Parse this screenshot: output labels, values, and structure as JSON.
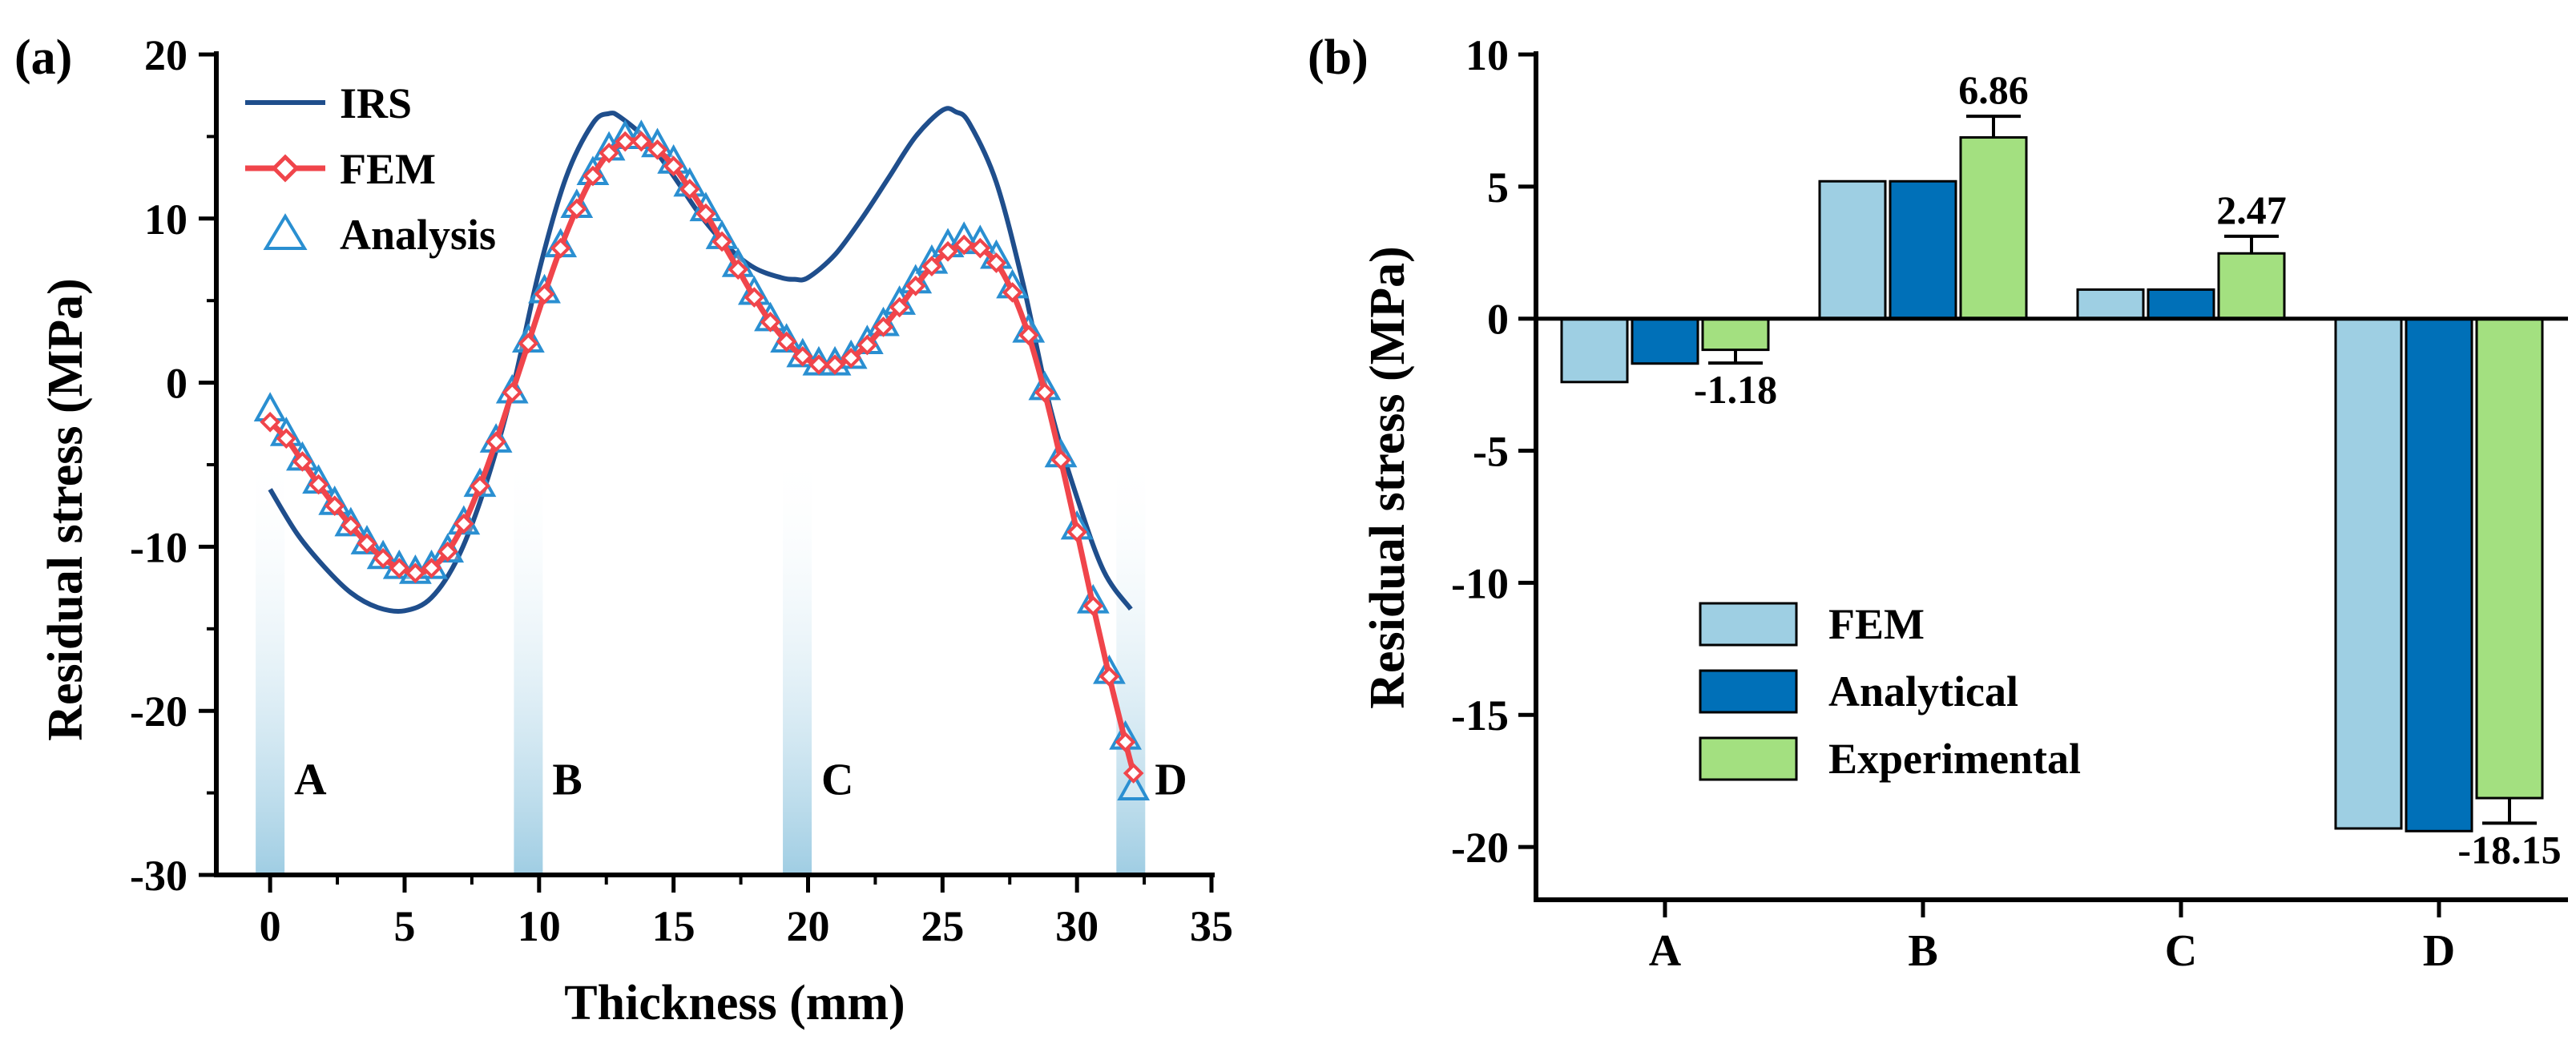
{
  "chart_data": [
    {
      "panel_label": "(a)",
      "type": "line",
      "xlabel": "Thickness (mm)",
      "ylabel": "Residual stress (MPa)",
      "xlim": [
        -2,
        35
      ],
      "ylim": [
        -30,
        20
      ],
      "xticks": [
        0,
        5,
        10,
        15,
        20,
        25,
        30,
        35
      ],
      "yticks": [
        -30,
        -20,
        -10,
        0,
        10,
        20
      ],
      "legend": {
        "placement": "top-left",
        "entries": [
          "IRS",
          "FEM",
          "Analysis"
        ]
      },
      "colors": {
        "IRS": "#1f4e8c",
        "FEM": "#f0454b",
        "Analysis": "#2a8fd1",
        "band": "#9fcde3"
      },
      "regions": [
        {
          "label": "A",
          "x": 0
        },
        {
          "label": "B",
          "x": 9.6
        },
        {
          "label": "C",
          "x": 19.6
        },
        {
          "label": "D",
          "x": 32
        }
      ],
      "series": [
        {
          "name": "IRS",
          "x": [
            0,
            1,
            2,
            3,
            4,
            5,
            6,
            7,
            8,
            9,
            10,
            11,
            12,
            12.6,
            13,
            14,
            15,
            16,
            17,
            18,
            19,
            19.5,
            20,
            21,
            22,
            23,
            24,
            25,
            25.5,
            26,
            27,
            28,
            29,
            30,
            31,
            32
          ],
          "y": [
            -6.5,
            -9.2,
            -11.2,
            -12.8,
            -13.7,
            -13.9,
            -13.1,
            -10.6,
            -6.3,
            -0.5,
            6.8,
            12.5,
            15.8,
            16.4,
            16.2,
            14.8,
            12.6,
            10.2,
            8.3,
            7.0,
            6.4,
            6.3,
            6.4,
            7.8,
            10.0,
            12.5,
            15.0,
            16.6,
            16.5,
            15.8,
            12.2,
            6.0,
            -1.5,
            -7.0,
            -11.5,
            -13.8
          ]
        },
        {
          "name": "FEM",
          "x": [
            0,
            0.6,
            1.2,
            1.8,
            2.4,
            3,
            3.6,
            4.2,
            4.8,
            5.4,
            6,
            6.6,
            7.2,
            7.8,
            8.4,
            9,
            9.6,
            10.2,
            10.8,
            11.4,
            12,
            12.6,
            13.2,
            13.8,
            14.4,
            15,
            15.6,
            16.2,
            16.8,
            17.4,
            18,
            18.6,
            19.2,
            19.8,
            20.4,
            21,
            21.6,
            22.2,
            22.8,
            23.4,
            24,
            24.6,
            25.2,
            25.8,
            26.4,
            27,
            27.6,
            28.2,
            28.8,
            29.4,
            30,
            30.6,
            31.2,
            31.8,
            32.1
          ],
          "y": [
            -2.4,
            -3.4,
            -4.8,
            -6.2,
            -7.5,
            -8.7,
            -9.8,
            -10.7,
            -11.3,
            -11.6,
            -11.3,
            -10.3,
            -8.6,
            -6.3,
            -3.6,
            -0.6,
            2.4,
            5.4,
            8.2,
            10.6,
            12.6,
            14.0,
            14.7,
            14.7,
            14.2,
            13.2,
            11.8,
            10.3,
            8.6,
            6.9,
            5.2,
            3.7,
            2.5,
            1.6,
            1.1,
            1.1,
            1.5,
            2.3,
            3.4,
            4.6,
            5.9,
            7.1,
            8.0,
            8.4,
            8.2,
            7.3,
            5.5,
            2.9,
            -0.6,
            -4.7,
            -9.1,
            -13.6,
            -17.9,
            -21.9,
            -23.8
          ]
        },
        {
          "name": "Analysis",
          "x": [
            0,
            0.6,
            1.2,
            1.8,
            2.4,
            3,
            3.6,
            4.2,
            4.8,
            5.4,
            6,
            6.6,
            7.2,
            7.8,
            8.4,
            9,
            9.6,
            10.2,
            10.8,
            11.4,
            12,
            12.6,
            13.2,
            13.8,
            14.4,
            15,
            15.6,
            16.2,
            16.8,
            17.4,
            18,
            18.6,
            19.2,
            19.8,
            20.4,
            21,
            21.6,
            22.2,
            22.8,
            23.4,
            24,
            24.6,
            25.2,
            25.8,
            26.4,
            27,
            27.6,
            28.2,
            28.8,
            29.4,
            30,
            30.6,
            31.2,
            31.8,
            32.1
          ],
          "y": [
            -1.6,
            -3.1,
            -4.6,
            -6.0,
            -7.3,
            -8.6,
            -9.7,
            -10.6,
            -11.2,
            -11.5,
            -11.2,
            -10.2,
            -8.5,
            -6.2,
            -3.5,
            -0.5,
            2.6,
            5.6,
            8.4,
            10.8,
            12.8,
            14.3,
            15.0,
            15.0,
            14.5,
            13.5,
            12.1,
            10.6,
            8.9,
            7.2,
            5.5,
            3.9,
            2.6,
            1.7,
            1.2,
            1.2,
            1.6,
            2.5,
            3.6,
            4.9,
            6.2,
            7.4,
            8.4,
            8.8,
            8.6,
            7.7,
            5.9,
            3.2,
            -0.3,
            -4.4,
            -8.8,
            -13.3,
            -17.6,
            -21.6,
            -24.7
          ]
        }
      ]
    },
    {
      "panel_label": "(b)",
      "type": "bar",
      "xlabel": "",
      "ylabel": "Residual stress (MPa)",
      "ylim": [
        -22,
        10
      ],
      "yticks": [
        -20,
        -15,
        -10,
        -5,
        0,
        5,
        10
      ],
      "categories": [
        "A",
        "B",
        "C",
        "D"
      ],
      "legend": {
        "placement": "lower-left",
        "entries": [
          "FEM",
          "Analytical",
          "Experimental"
        ]
      },
      "series": [
        {
          "name": "FEM",
          "color": "#9ecfe3",
          "values": [
            -2.4,
            5.2,
            1.1,
            -19.3
          ]
        },
        {
          "name": "Analytical",
          "color": "#0070b8",
          "values": [
            -1.7,
            5.2,
            1.1,
            -19.4
          ]
        },
        {
          "name": "Experimental",
          "color": "#a3e080",
          "values": [
            -1.18,
            6.86,
            2.47,
            -18.15
          ],
          "errors": [
            0.5,
            0.8,
            0.65,
            0.95
          ]
        }
      ],
      "data_labels": [
        "-1.18",
        "6.86",
        "2.47",
        "-18.15"
      ]
    }
  ]
}
